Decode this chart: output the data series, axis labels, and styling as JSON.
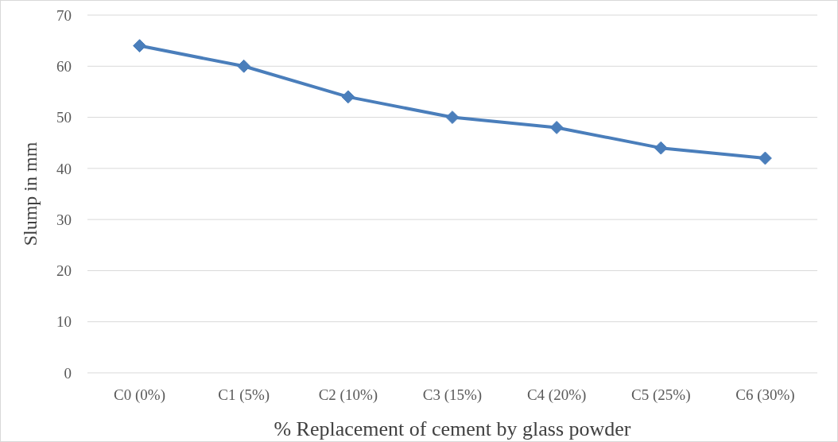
{
  "chart_data": {
    "type": "line",
    "xlabel": "% Replacement of cement by glass powder",
    "ylabel": "Slump in mm",
    "categories": [
      "C0 (0%)",
      "C1 (5%)",
      "C2 (10%)",
      "C3 (15%)",
      "C4 (20%)",
      "C5 (25%)",
      "C6 (30%)"
    ],
    "series": [
      {
        "color": "#4a7ebb",
        "values": [
          64,
          60,
          54,
          50,
          48,
          44,
          42
        ]
      }
    ],
    "ylim": [
      0,
      70
    ],
    "yticks": [
      0,
      10,
      20,
      30,
      40,
      50,
      60,
      70
    ],
    "grid": "y",
    "marker": "diamond",
    "line_style": "solid"
  }
}
